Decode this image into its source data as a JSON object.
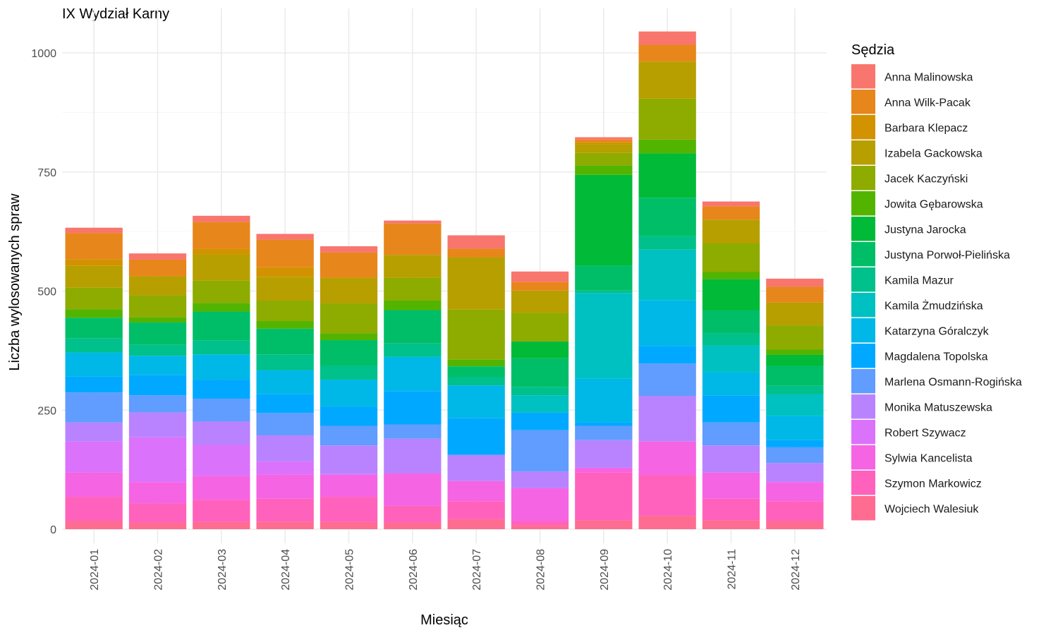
{
  "chart_data": {
    "type": "bar",
    "stacked": true,
    "title": "IX Wydział Karny",
    "xlabel": "Miesiąc",
    "ylabel": "Liczba wylosowanych spraw",
    "ylim": [
      0,
      1050
    ],
    "yticks": [
      0,
      250,
      500,
      750,
      1000
    ],
    "grid": true,
    "legend": {
      "title": "Sędzia",
      "position": "right"
    },
    "categories": [
      "2024-01",
      "2024-02",
      "2024-03",
      "2024-04",
      "2024-05",
      "2024-06",
      "2024-07",
      "2024-08",
      "2024-09",
      "2024-10",
      "2024-11",
      "2024-12"
    ],
    "series": [
      {
        "name": "Wojciech Walesiuk",
        "color": "#FF6C91",
        "values": [
          17,
          14,
          15,
          16,
          15,
          14,
          21,
          8,
          19,
          28,
          19,
          17
        ]
      },
      {
        "name": "Szymon Markowicz",
        "color": "#FF62BC",
        "values": [
          51,
          40,
          47,
          48,
          53,
          35,
          38,
          9,
          100,
          86,
          45,
          42
        ]
      },
      {
        "name": "Sylwia Kancelista",
        "color": "#F564E3",
        "values": [
          51,
          45,
          50,
          51,
          46,
          68,
          42,
          69,
          10,
          70,
          55,
          40
        ]
      },
      {
        "name": "Robert Szywacz",
        "color": "#DB72FB",
        "values": [
          65,
          94,
          65,
          27,
          2,
          0,
          0,
          0,
          0,
          0,
          0,
          0
        ]
      },
      {
        "name": "Monika Matuszewska",
        "color": "#B983FF",
        "values": [
          40,
          52,
          49,
          55,
          60,
          73,
          55,
          35,
          58,
          96,
          57,
          40
        ]
      },
      {
        "name": "Marlena Osmann-Rogińska",
        "color": "#619CFF",
        "values": [
          63,
          36,
          48,
          47,
          41,
          30,
          0,
          87,
          30,
          68,
          48,
          33
        ]
      },
      {
        "name": "Magdalena Topolska",
        "color": "#00A9FF",
        "values": [
          34,
          43,
          40,
          40,
          40,
          70,
          77,
          37,
          8,
          37,
          57,
          15
        ]
      },
      {
        "name": "Katarzyna Góralczyk",
        "color": "#00B8E7",
        "values": [
          50,
          40,
          53,
          50,
          57,
          72,
          69,
          0,
          91,
          96,
          48,
          51
        ]
      },
      {
        "name": "Kamila Żmudzińska",
        "color": "#00C1C1",
        "values": [
          0,
          0,
          0,
          0,
          0,
          0,
          0,
          36,
          180,
          106,
          57,
          45
        ]
      },
      {
        "name": "Kamila Mazur",
        "color": "#00C08B",
        "values": [
          30,
          23,
          29,
          33,
          29,
          28,
          18,
          18,
          5,
          28,
          25,
          18
        ]
      },
      {
        "name": "Justyna Porwoł-Pielińska",
        "color": "#00BE67",
        "values": [
          43,
          47,
          61,
          54,
          54,
          70,
          22,
          60,
          53,
          81,
          49,
          42
        ]
      },
      {
        "name": "Justyna Jarocka",
        "color": "#00BA38",
        "values": [
          0,
          0,
          0,
          0,
          0,
          0,
          0,
          35,
          190,
          93,
          65,
          23
        ]
      },
      {
        "name": "Jowita Gębarowska",
        "color": "#53B400",
        "values": [
          18,
          11,
          18,
          16,
          14,
          20,
          14,
          0,
          20,
          29,
          15,
          11
        ]
      },
      {
        "name": "Jacek Kaczyński",
        "color": "#8EAB00",
        "values": [
          45,
          46,
          47,
          43,
          63,
          48,
          105,
          60,
          26,
          86,
          60,
          51
        ]
      },
      {
        "name": "Izabela Gackowska",
        "color": "#B79F00",
        "values": [
          46,
          40,
          55,
          50,
          54,
          48,
          110,
          47,
          18,
          78,
          50,
          48
        ]
      },
      {
        "name": "Barbara Klepacz",
        "color": "#D39200",
        "values": [
          14,
          0,
          12,
          20,
          0,
          0,
          0,
          0,
          5,
          0,
          0,
          0
        ]
      },
      {
        "name": "Anna Wilk-Pacak",
        "color": "#E7861B",
        "values": [
          55,
          35,
          56,
          58,
          53,
          66,
          18,
          18,
          5,
          35,
          28,
          33
        ]
      },
      {
        "name": "Anna Malinowska",
        "color": "#F8766D",
        "values": [
          11,
          13,
          13,
          12,
          13,
          6,
          28,
          22,
          5,
          28,
          10,
          17
        ]
      }
    ]
  }
}
